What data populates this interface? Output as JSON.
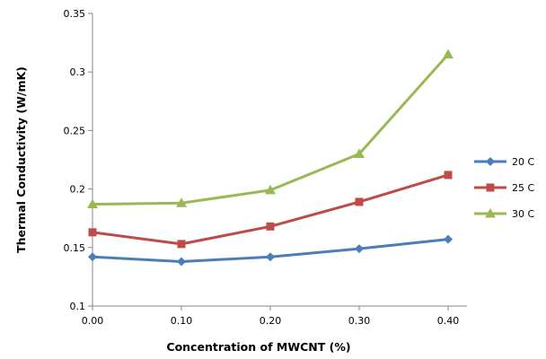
{
  "chart_data": {
    "type": "line",
    "title": "",
    "xlabel": "Concentration of MWCNT (%)",
    "ylabel": "Thermal Conductivity (W/mK)",
    "x": [
      0,
      0.1,
      0.2,
      0.3,
      0.4
    ],
    "x_tick_labels": [
      "0.00",
      "0.10",
      "0.20",
      "0.30",
      "0.40"
    ],
    "xlim": [
      0,
      0.4
    ],
    "ylim": [
      0.1,
      0.35
    ],
    "y_ticks": [
      0.1,
      0.15,
      0.2,
      0.25,
      0.3,
      0.35
    ],
    "y_tick_labels": [
      "0.1",
      "0.15",
      "0.2",
      "0.25",
      "0.3",
      "0.35"
    ],
    "grid": false,
    "legend_position": "right",
    "series": [
      {
        "name": "20 C",
        "color": "#4a7ebb",
        "marker": "diamond",
        "values": [
          0.142,
          0.138,
          0.142,
          0.149,
          0.157
        ]
      },
      {
        "name": "25 C",
        "color": "#be4b48",
        "marker": "square",
        "values": [
          0.163,
          0.153,
          0.168,
          0.189,
          0.212
        ]
      },
      {
        "name": "30 C",
        "color": "#98b954",
        "marker": "triangle",
        "values": [
          0.187,
          0.188,
          0.199,
          0.23,
          0.315
        ]
      }
    ]
  }
}
